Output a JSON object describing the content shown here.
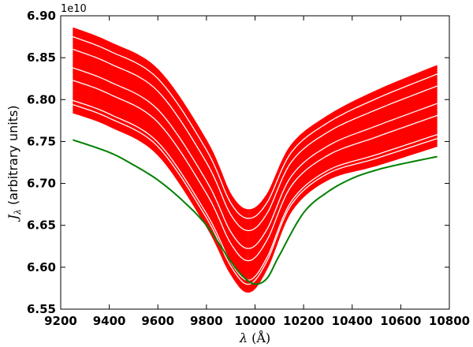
{
  "chart_data": {
    "type": "line",
    "xlabel": "λ (Å)",
    "ylabel": "J_λ (arbitrary units)",
    "y_offset_label": "1e10",
    "xlim": [
      9200,
      10800
    ],
    "ylim": [
      6.55,
      6.9
    ],
    "y_scale_factor": 10000000000.0,
    "xticks": [
      9200,
      9400,
      9600,
      9800,
      10000,
      10200,
      10400,
      10600,
      10800
    ],
    "xtick_labels": [
      "9200",
      "9400",
      "9600",
      "9800",
      "10000",
      "10200",
      "10400",
      "10600",
      "10800"
    ],
    "yticks": [
      6.55,
      6.6,
      6.65,
      6.7,
      6.75,
      6.8,
      6.85,
      6.9
    ],
    "ytick_labels": [
      "6.55",
      "6.60",
      "6.65",
      "6.70",
      "6.75",
      "6.80",
      "6.85",
      "6.90"
    ],
    "grid": false,
    "legend": false,
    "series_band": {
      "color": "#ff0000",
      "x": [
        9250,
        9400,
        9600,
        9800,
        9900,
        9975,
        10050,
        10150,
        10300,
        10500,
        10750
      ],
      "envelope_upper": [
        6.885,
        6.868,
        6.835,
        6.75,
        6.686,
        6.668,
        6.686,
        6.745,
        6.78,
        6.81,
        6.84
      ],
      "envelope_lower": [
        6.785,
        6.769,
        6.735,
        6.65,
        6.593,
        6.571,
        6.6,
        6.668,
        6.705,
        6.722,
        6.745
      ],
      "gaps": [
        6.875,
        6.86,
        6.838,
        6.823,
        6.799,
        6.794
      ]
    },
    "series": [
      {
        "color": "#008000",
        "x": [
          9250,
          9400,
          9500,
          9600,
          9700,
          9800,
          9900,
          9950,
          10000,
          10050,
          10100,
          10200,
          10300,
          10400,
          10500,
          10600,
          10750
        ],
        "values": [
          6.752,
          6.737,
          6.722,
          6.704,
          6.68,
          6.65,
          6.607,
          6.589,
          6.58,
          6.587,
          6.614,
          6.665,
          6.69,
          6.706,
          6.716,
          6.723,
          6.732
        ]
      }
    ]
  }
}
